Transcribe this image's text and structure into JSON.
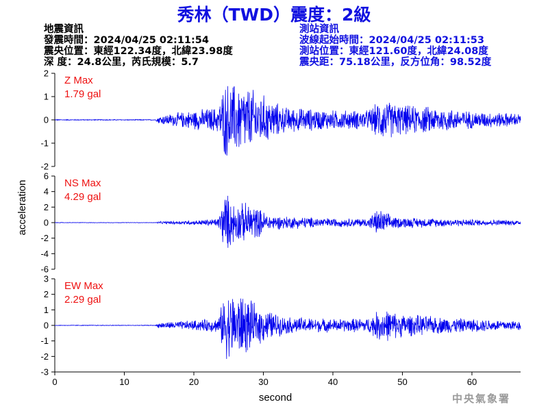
{
  "title": "秀林（TWD）震度：2級",
  "earthquake_info": {
    "heading": "地震資訊",
    "origin_time": "發震時間：2024/04/25 02:11:54",
    "epicenter": "震央位置：東經122.34度，北緯23.98度",
    "depth_magnitude": "深  度：24.8公里，芮氏規模：5.7"
  },
  "station_info": {
    "heading": "測站資訊",
    "arrival_time": "波線起始時間：2024/04/25 02:11:53",
    "location": "測站位置：東經121.60度，北緯24.08度",
    "distance_azimuth": "震央距：75.18公里，反方位角：98.52度"
  },
  "credit": "中央氣象署",
  "colors": {
    "title": "#1010e0",
    "trace": "#0000ee",
    "max_label": "#ee1111",
    "station_info": "#1010e0"
  },
  "chart_data": {
    "type": "line",
    "xlabel": "second",
    "ylabel": "acceleration",
    "xlim": [
      0,
      67
    ],
    "x_ticks": [
      0,
      10,
      20,
      30,
      40,
      50,
      60
    ],
    "grid": false,
    "panels": [
      {
        "name": "Z",
        "max_label": "Z Max",
        "max_value": "1.79 gal",
        "ylim": [
          -2,
          2
        ],
        "y_ticks": [
          -2,
          -1,
          0,
          1,
          2
        ],
        "envelope": [
          [
            0,
            0.02
          ],
          [
            14.5,
            0.02
          ],
          [
            15,
            0.2
          ],
          [
            20,
            0.45
          ],
          [
            23.5,
            0.6
          ],
          [
            24.5,
            1.79
          ],
          [
            27,
            1.6
          ],
          [
            29,
            1.35
          ],
          [
            33,
            0.6
          ],
          [
            40,
            0.45
          ],
          [
            45,
            0.45
          ],
          [
            47,
            0.95
          ],
          [
            50,
            0.7
          ],
          [
            55,
            0.6
          ],
          [
            60,
            0.4
          ],
          [
            67,
            0.3
          ]
        ]
      },
      {
        "name": "NS",
        "max_label": "NS Max",
        "max_value": "4.29 gal",
        "ylim": [
          -6,
          6
        ],
        "y_ticks": [
          -6,
          -4,
          -2,
          0,
          2,
          4,
          6
        ],
        "envelope": [
          [
            0,
            0.03
          ],
          [
            14.5,
            0.03
          ],
          [
            15,
            0.15
          ],
          [
            20,
            0.3
          ],
          [
            23.5,
            0.6
          ],
          [
            24.5,
            4.29
          ],
          [
            26,
            2.6
          ],
          [
            28,
            2.8
          ],
          [
            31,
            1.0
          ],
          [
            40,
            0.6
          ],
          [
            45,
            0.6
          ],
          [
            46.5,
            1.9
          ],
          [
            49,
            0.8
          ],
          [
            55,
            0.6
          ],
          [
            60,
            0.45
          ],
          [
            67,
            0.35
          ]
        ]
      },
      {
        "name": "EW",
        "max_label": "EW Max",
        "max_value": "2.29 gal",
        "ylim": [
          -3,
          3
        ],
        "y_ticks": [
          -3,
          -2,
          -1,
          0,
          1,
          2,
          3
        ],
        "envelope": [
          [
            0,
            0.02
          ],
          [
            14.5,
            0.02
          ],
          [
            15,
            0.2
          ],
          [
            20,
            0.35
          ],
          [
            23.5,
            0.5
          ],
          [
            24.5,
            2.29
          ],
          [
            27,
            2.2
          ],
          [
            29,
            1.4
          ],
          [
            33,
            0.6
          ],
          [
            40,
            0.45
          ],
          [
            45,
            0.5
          ],
          [
            47,
            1.2
          ],
          [
            50,
            0.8
          ],
          [
            55,
            0.6
          ],
          [
            60,
            0.45
          ],
          [
            67,
            0.35
          ]
        ]
      }
    ]
  }
}
